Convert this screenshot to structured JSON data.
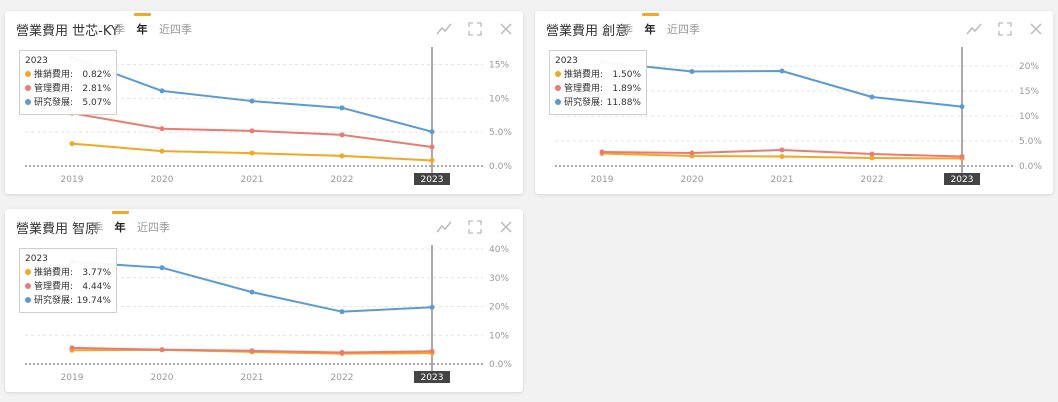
{
  "ui": {
    "tabs": [
      "季",
      "年",
      "近四季"
    ],
    "active_tab": "年",
    "icons": [
      "line-chart-icon",
      "fullscreen-icon",
      "close-icon"
    ]
  },
  "colors": {
    "推銷費用": "#f5a623",
    "管理費用": "#eb7b72",
    "研究發展": "#5b9bd5",
    "accent": "#f5a623"
  },
  "chart_data": [
    {
      "type": "line",
      "title": "營業費用 世芯-KY",
      "categories": [
        "2019",
        "2020",
        "2021",
        "2022",
        "2023"
      ],
      "highlight_category": "2023",
      "ylim": [
        0,
        17
      ],
      "yticks": [
        0,
        5,
        10,
        15
      ],
      "ytick_labels": [
        "0.0%",
        "5.0%",
        "10%",
        "15%"
      ],
      "grid": true,
      "series": [
        {
          "name": "推銷費用",
          "values": [
            3.3,
            2.2,
            1.9,
            1.5,
            0.82
          ]
        },
        {
          "name": "管理費用",
          "values": [
            7.8,
            5.5,
            5.2,
            4.6,
            2.81
          ]
        },
        {
          "name": "研究發展",
          "values": [
            16.0,
            11.1,
            9.6,
            8.6,
            5.07
          ]
        }
      ],
      "tooltip": {
        "title": "2023",
        "rows": [
          {
            "name": "推銷費用:",
            "value": "0.82%"
          },
          {
            "name": "管理費用:",
            "value": "2.81%"
          },
          {
            "name": "研究發展:",
            "value": "5.07%"
          }
        ]
      }
    },
    {
      "type": "line",
      "title": "營業費用 創意",
      "categories": [
        "2019",
        "2020",
        "2021",
        "2022",
        "2023"
      ],
      "highlight_category": "2023",
      "ylim": [
        0,
        23
      ],
      "yticks": [
        0,
        5,
        10,
        15,
        20
      ],
      "ytick_labels": [
        "0.0%",
        "5.0%",
        "10%",
        "15%",
        "20%"
      ],
      "grid": true,
      "series": [
        {
          "name": "推銷費用",
          "values": [
            2.5,
            2.0,
            1.9,
            1.6,
            1.5
          ]
        },
        {
          "name": "管理費用",
          "values": [
            2.8,
            2.6,
            3.2,
            2.4,
            1.89
          ]
        },
        {
          "name": "研究發展",
          "values": [
            20.8,
            18.9,
            19.0,
            13.8,
            11.88
          ]
        }
      ],
      "tooltip": {
        "title": "2023",
        "rows": [
          {
            "name": "推銷費用:",
            "value": "1.50%"
          },
          {
            "name": "管理費用:",
            "value": "1.89%"
          },
          {
            "name": "研究發展:",
            "value": "11.88%"
          }
        ]
      }
    },
    {
      "type": "line",
      "title": "營業費用 智原",
      "categories": [
        "2019",
        "2020",
        "2021",
        "2022",
        "2023"
      ],
      "highlight_category": "2023",
      "ylim": [
        0,
        40
      ],
      "yticks": [
        0,
        10,
        20,
        30,
        40
      ],
      "ytick_labels": [
        "0.0%",
        "10%",
        "20%",
        "30%",
        "40%"
      ],
      "grid": true,
      "series": [
        {
          "name": "推銷費用",
          "values": [
            4.8,
            4.9,
            4.2,
            3.6,
            3.77
          ]
        },
        {
          "name": "管理費用",
          "values": [
            5.6,
            5.0,
            4.6,
            4.0,
            4.44
          ]
        },
        {
          "name": "研究發展",
          "values": [
            35.5,
            33.5,
            25.0,
            18.2,
            19.74
          ]
        }
      ],
      "tooltip": {
        "title": "2023",
        "rows": [
          {
            "name": "推銷費用:",
            "value": "3.77%"
          },
          {
            "name": "管理費用:",
            "value": "4.44%"
          },
          {
            "name": "研究發展:",
            "value": "19.74%"
          }
        ]
      }
    }
  ]
}
